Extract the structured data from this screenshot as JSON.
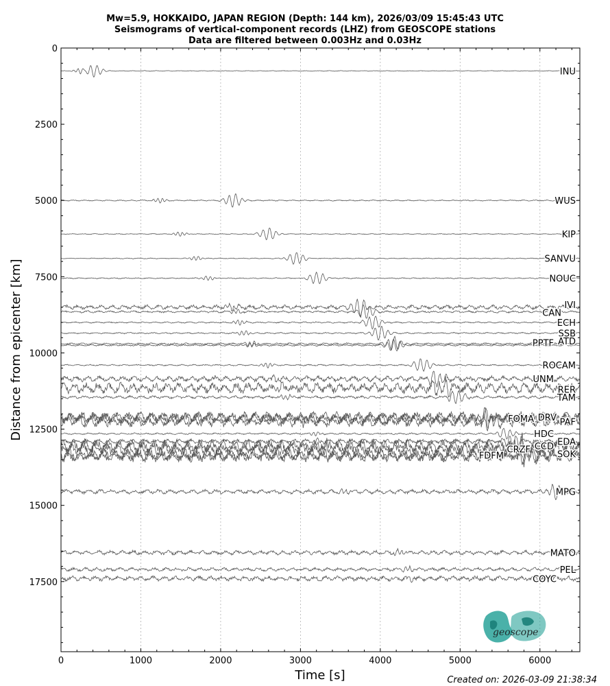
{
  "chart_data": {
    "type": "line",
    "title": "Mw=5.9, HOKKAIDO, JAPAN REGION (Depth: 144 km), 2026/03/09 15:45:43 UTC",
    "subtitle": "Seismograms of vertical-component records (LHZ) from GEOSCOPE stations",
    "subtitle2": "Data are filtered between 0.003Hz and 0.03Hz",
    "xlabel": "Time [s]",
    "ylabel": "Distance from epicenter [km]",
    "xlim": [
      0,
      6500
    ],
    "ylim": [
      19800,
      0
    ],
    "y_inverted": true,
    "grid": "vertical dotted lines at x ticks",
    "xticks": [
      0,
      1000,
      2000,
      3000,
      4000,
      5000,
      6000
    ],
    "yticks": [
      0,
      2500,
      5000,
      7500,
      10000,
      12500,
      15000,
      17500
    ],
    "traces": [
      {
        "station": "INU",
        "distance_km": 750,
        "arrival_s": 200,
        "amplitude": 0.9,
        "noise": 0.05
      },
      {
        "station": "WUS",
        "distance_km": 5000,
        "arrival_s": 1200,
        "amplitude": 1.0,
        "noise": 0.08
      },
      {
        "station": "KIP",
        "distance_km": 6100,
        "arrival_s": 1450,
        "amplitude": 0.9,
        "noise": 0.06
      },
      {
        "station": "SANVU",
        "distance_km": 6900,
        "arrival_s": 1650,
        "amplitude": 0.9,
        "noise": 0.06
      },
      {
        "station": "NOUC",
        "distance_km": 7550,
        "arrival_s": 1800,
        "amplitude": 0.9,
        "noise": 0.08
      },
      {
        "station": "IVI",
        "distance_km": 8500,
        "arrival_s": 2100,
        "amplitude": 1.2,
        "noise": 0.25
      },
      {
        "station": "CAN",
        "distance_km": 8650,
        "arrival_s": 2150,
        "amplitude": 1.0,
        "noise": 0.15
      },
      {
        "station": "ECH",
        "distance_km": 9000,
        "arrival_s": 2200,
        "amplitude": 1.0,
        "noise": 0.1
      },
      {
        "station": "SSB",
        "distance_km": 9350,
        "arrival_s": 2250,
        "amplitude": 1.0,
        "noise": 0.1
      },
      {
        "station": "ATD",
        "distance_km": 9700,
        "arrival_s": 2350,
        "amplitude": 1.0,
        "noise": 0.12
      },
      {
        "station": "PPTF",
        "distance_km": 9750,
        "arrival_s": 2350,
        "amplitude": 0.9,
        "noise": 0.12
      },
      {
        "station": "ROCAM",
        "distance_km": 10400,
        "arrival_s": 2550,
        "amplitude": 1.0,
        "noise": 0.1
      },
      {
        "station": "UNM",
        "distance_km": 10850,
        "arrival_s": 2650,
        "amplitude": 1.1,
        "noise": 0.35
      },
      {
        "station": "RER",
        "distance_km": 11150,
        "arrival_s": 2700,
        "amplitude": 1.2,
        "noise": 0.6
      },
      {
        "station": "TAM",
        "distance_km": 11450,
        "arrival_s": 2800,
        "amplitude": 1.0,
        "noise": 0.2
      },
      {
        "station": "DRV",
        "distance_km": 12100,
        "arrival_s": 3000,
        "amplitude": 1.0,
        "noise": 0.7
      },
      {
        "station": "FOMA",
        "distance_km": 12150,
        "arrival_s": 3000,
        "amplitude": 1.0,
        "noise": 0.7
      },
      {
        "station": "PAF",
        "distance_km": 12250,
        "arrival_s": 3050,
        "amplitude": 1.0,
        "noise": 0.7
      },
      {
        "station": "HDC",
        "distance_km": 12650,
        "arrival_s": 3150,
        "amplitude": 0.8,
        "noise": 0.15
      },
      {
        "station": "EDA",
        "distance_km": 12900,
        "arrival_s": 3200,
        "amplitude": 1.0,
        "noise": 0.3
      },
      {
        "station": "CCD",
        "distance_km": 13050,
        "arrival_s": 3250,
        "amplitude": 1.1,
        "noise": 0.8
      },
      {
        "station": "CRZF",
        "distance_km": 13150,
        "arrival_s": 3250,
        "amplitude": 1.1,
        "noise": 0.8
      },
      {
        "station": "SOK",
        "distance_km": 13350,
        "arrival_s": 3300,
        "amplitude": 1.1,
        "noise": 0.8
      },
      {
        "station": "FDFM",
        "distance_km": 13400,
        "arrival_s": 3300,
        "amplitude": 1.0,
        "noise": 0.6
      },
      {
        "station": "MPG",
        "distance_km": 14550,
        "arrival_s": 3500,
        "amplitude": 1.0,
        "noise": 0.3
      },
      {
        "station": "MATO",
        "distance_km": 16550,
        "arrival_s": 4200,
        "amplitude": 1.0,
        "noise": 0.3
      },
      {
        "station": "PEL",
        "distance_km": 17100,
        "arrival_s": 4300,
        "amplitude": 1.0,
        "noise": 0.25
      },
      {
        "station": "COYC",
        "distance_km": 17400,
        "arrival_s": 4350,
        "amplitude": 1.0,
        "noise": 0.35
      }
    ]
  },
  "footer": {
    "created": "Created on: 2026-03-09 21:38:34"
  },
  "logo": {
    "text": "geoscope",
    "color": "#2aa39a"
  },
  "colors": {
    "trace": "#555555",
    "grid": "#b0b0b0",
    "axis": "#000000"
  }
}
